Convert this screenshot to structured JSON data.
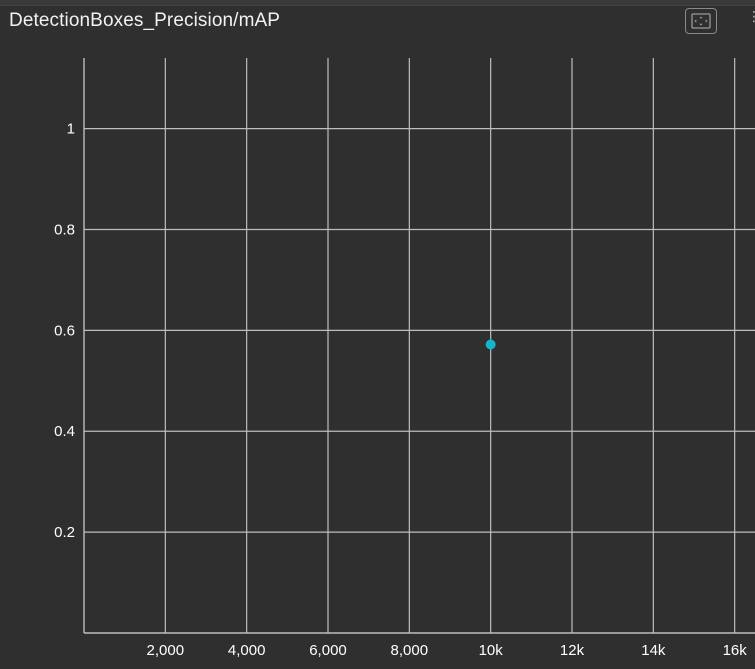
{
  "card": {
    "title": "DetectionBoxes_Precision/mAP",
    "expand_icon": "fit-to-screen-icon"
  },
  "colors": {
    "background": "#2f2f2f",
    "grid": "#bdbdbd",
    "point": "#12b5cb",
    "text": "#ffffff"
  },
  "chart_data": {
    "type": "scatter",
    "title": "DetectionBoxes_Precision/mAP",
    "xlabel": "",
    "ylabel": "",
    "xlim": [
      0,
      16500
    ],
    "ylim": [
      0,
      1.14
    ],
    "grid": true,
    "x_ticks": [
      {
        "value": 2000,
        "label": "2,000"
      },
      {
        "value": 4000,
        "label": "4,000"
      },
      {
        "value": 6000,
        "label": "6,000"
      },
      {
        "value": 8000,
        "label": "8,000"
      },
      {
        "value": 10000,
        "label": "10k"
      },
      {
        "value": 12000,
        "label": "12k"
      },
      {
        "value": 14000,
        "label": "14k"
      },
      {
        "value": 16000,
        "label": "16k"
      }
    ],
    "y_ticks": [
      {
        "value": 0.2,
        "label": "0.2"
      },
      {
        "value": 0.4,
        "label": "0.4"
      },
      {
        "value": 0.6,
        "label": "0.6"
      },
      {
        "value": 0.8,
        "label": "0.8"
      },
      {
        "value": 1.0,
        "label": "1"
      }
    ],
    "series": [
      {
        "points": [
          {
            "x": 10000,
            "y": 0.572
          }
        ]
      }
    ]
  }
}
